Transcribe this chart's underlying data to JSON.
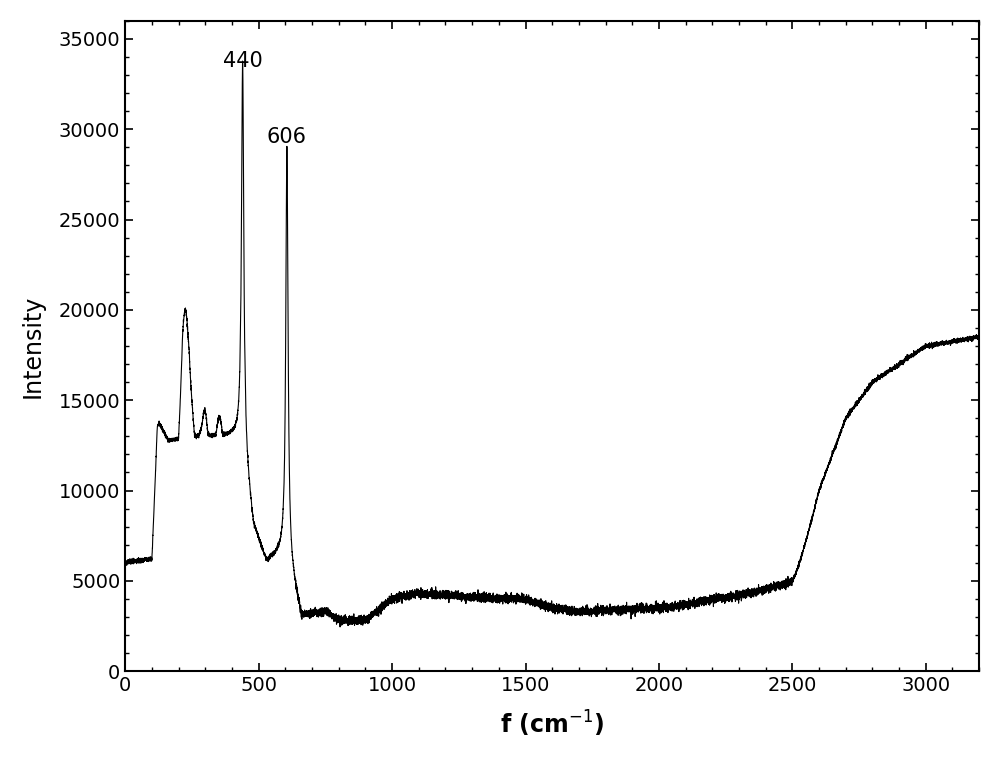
{
  "title": "",
  "xlabel": "f (cm$^{-1}$)",
  "ylabel": "Intensity",
  "xlim": [
    0,
    3200
  ],
  "ylim": [
    0,
    36000
  ],
  "xticks": [
    0,
    500,
    1000,
    1500,
    2000,
    2500,
    3000
  ],
  "yticks": [
    0,
    5000,
    10000,
    15000,
    20000,
    25000,
    30000,
    35000
  ],
  "peak1_x": 440,
  "peak1_y": 33200,
  "peak2_x": 606,
  "peak2_y": 29000,
  "line_color": "#000000",
  "background_color": "#ffffff",
  "xlabel_fontsize": 17,
  "ylabel_fontsize": 17,
  "tick_fontsize": 14,
  "annotation_fontsize": 15
}
